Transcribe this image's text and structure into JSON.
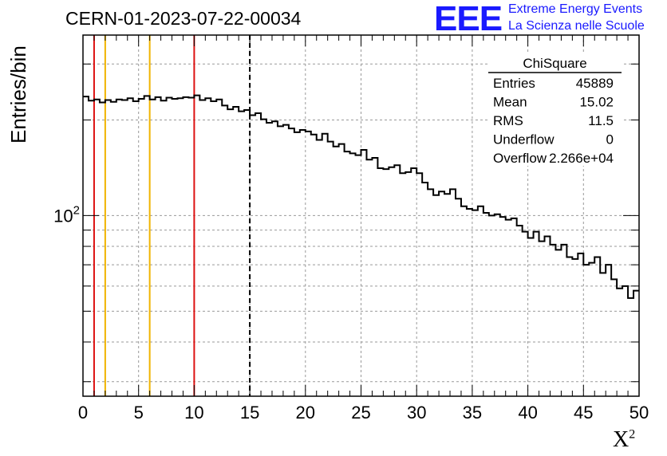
{
  "header": {
    "run_title": "CERN-01-2023-07-22-00034",
    "logo_text": "EEE",
    "logo_line1": "Extreme Energy Events",
    "logo_line2": "La Scienza nelle Scuole"
  },
  "stats_box": {
    "title": "ChiSquare",
    "rows": [
      {
        "label": "Entries",
        "value": "45889"
      },
      {
        "label": "Mean",
        "value": "15.02"
      },
      {
        "label": "RMS",
        "value": "11.5"
      },
      {
        "label": "Underflow",
        "value": "0"
      },
      {
        "label": "Overflow",
        "value": "2.266e+04"
      }
    ]
  },
  "colors": {
    "histogram": "#000000",
    "red_line": "#dd1111",
    "yellow_line": "#f0b400",
    "grid": "#999999",
    "logo": "#1a1aff"
  },
  "chart_data": {
    "type": "histogram",
    "title": "CERN-01-2023-07-22-00034",
    "xlabel": "X",
    "xlabel_superscript": "2",
    "ylabel": "Entries/bin",
    "xlim": [
      0,
      50
    ],
    "ylim": [
      27,
      370
    ],
    "yscale": "log",
    "grid": true,
    "x_ticks": [
      0,
      5,
      10,
      15,
      20,
      25,
      30,
      35,
      40,
      45,
      50
    ],
    "y_tick_label": {
      "base": "10",
      "exponent": "2",
      "value": 100
    },
    "bin_width": 0.5,
    "values": [
      237,
      230,
      232,
      227,
      231,
      228,
      232,
      231,
      234,
      229,
      233,
      238,
      232,
      236,
      230,
      235,
      233,
      234,
      236,
      235,
      239,
      231,
      234,
      229,
      232,
      222,
      216,
      220,
      213,
      215,
      207,
      210,
      201,
      196,
      198,
      191,
      193,
      188,
      183,
      186,
      184,
      180,
      173,
      181,
      171,
      165,
      168,
      159,
      157,
      155,
      161,
      150,
      152,
      141,
      140,
      142,
      144,
      136,
      137,
      141,
      136,
      127,
      121,
      116,
      119,
      117,
      121,
      113,
      107,
      105,
      104,
      107,
      102,
      100,
      101,
      99,
      97,
      98,
      93,
      89,
      85,
      89,
      83,
      86,
      81,
      78,
      81,
      74,
      73,
      76,
      70,
      71,
      74,
      66,
      70,
      63,
      59,
      60,
      55,
      58
    ],
    "vlines": [
      {
        "x": 1,
        "color": "red",
        "style": "solid"
      },
      {
        "x": 2,
        "color": "yellow",
        "style": "solid"
      },
      {
        "x": 6,
        "color": "yellow",
        "style": "solid"
      },
      {
        "x": 10,
        "color": "red",
        "style": "solid"
      },
      {
        "x": 15,
        "color": "black",
        "style": "dashed"
      }
    ]
  }
}
